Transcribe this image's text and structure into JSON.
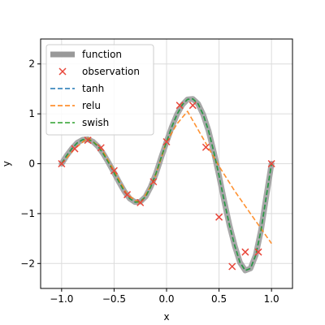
{
  "chart_data": {
    "type": "line",
    "title": "",
    "xlabel": "x",
    "ylabel": "y",
    "xlim": [
      -1.2,
      1.2
    ],
    "ylim": [
      -2.5,
      2.5
    ],
    "xticks": [
      -1.0,
      -0.5,
      0.0,
      0.5,
      1.0
    ],
    "xtick_labels": [
      "−1.0",
      "−0.5",
      "0.0",
      "0.5",
      "1.0"
    ],
    "yticks": [
      -2,
      -1,
      0,
      1,
      2
    ],
    "ytick_labels": [
      "−2",
      "−1",
      "0",
      "1",
      "2"
    ],
    "grid": true,
    "legend_position": "upper-left",
    "series": [
      {
        "name": "function",
        "style": "thick-solid",
        "color": "#999999",
        "x": [
          -1.0,
          -0.95,
          -0.9,
          -0.85,
          -0.8,
          -0.75,
          -0.7,
          -0.65,
          -0.6,
          -0.55,
          -0.5,
          -0.45,
          -0.4,
          -0.35,
          -0.3,
          -0.25,
          -0.2,
          -0.15,
          -0.1,
          -0.05,
          0.0,
          0.05,
          0.1,
          0.15,
          0.2,
          0.25,
          0.3,
          0.35,
          0.4,
          0.45,
          0.5,
          0.55,
          0.6,
          0.65,
          0.7,
          0.75,
          0.8,
          0.85,
          0.9,
          0.95,
          1.0
        ],
        "y": [
          0.0,
          0.17,
          0.31,
          0.42,
          0.48,
          0.49,
          0.44,
          0.34,
          0.19,
          0.01,
          -0.18,
          -0.38,
          -0.56,
          -0.7,
          -0.77,
          -0.76,
          -0.66,
          -0.46,
          -0.19,
          0.13,
          0.44,
          0.74,
          0.99,
          1.18,
          1.29,
          1.3,
          1.2,
          0.98,
          0.66,
          0.24,
          -0.24,
          -0.75,
          -1.24,
          -1.65,
          -1.98,
          -2.14,
          -2.1,
          -1.83,
          -1.33,
          -0.66,
          0.0
        ]
      },
      {
        "name": "tanh",
        "style": "dashed",
        "color": "#1f77b4",
        "x": [
          -1.0,
          -0.95,
          -0.9,
          -0.85,
          -0.8,
          -0.75,
          -0.7,
          -0.65,
          -0.6,
          -0.55,
          -0.5,
          -0.45,
          -0.4,
          -0.35,
          -0.3,
          -0.25,
          -0.2,
          -0.15,
          -0.1,
          -0.05,
          0.0,
          0.05,
          0.1,
          0.15,
          0.2,
          0.25,
          0.3,
          0.35,
          0.4,
          0.45,
          0.5,
          0.55,
          0.6,
          0.65,
          0.7,
          0.75,
          0.8,
          0.85,
          0.9,
          0.95,
          1.0
        ],
        "y": [
          0.0,
          0.17,
          0.31,
          0.42,
          0.48,
          0.49,
          0.44,
          0.34,
          0.19,
          0.01,
          -0.18,
          -0.38,
          -0.56,
          -0.7,
          -0.77,
          -0.76,
          -0.66,
          -0.46,
          -0.19,
          0.13,
          0.44,
          0.74,
          0.99,
          1.18,
          1.29,
          1.3,
          1.2,
          0.98,
          0.66,
          0.24,
          -0.24,
          -0.75,
          -1.24,
          -1.65,
          -1.98,
          -2.14,
          -2.1,
          -1.83,
          -1.33,
          -0.66,
          0.0
        ]
      },
      {
        "name": "relu",
        "style": "dashed",
        "color": "#ff7f0e",
        "x": [
          -1.0,
          -0.875,
          -0.75,
          -0.625,
          -0.5,
          -0.375,
          -0.25,
          -0.125,
          0.0,
          0.1,
          0.2,
          0.35,
          0.5,
          0.65,
          0.8,
          1.0
        ],
        "y": [
          0.0,
          0.3,
          0.52,
          0.32,
          -0.14,
          -0.62,
          -0.8,
          -0.36,
          0.44,
          0.8,
          1.05,
          0.5,
          -0.05,
          -0.55,
          -1.0,
          -1.6
        ]
      },
      {
        "name": "swish",
        "style": "dashed",
        "color": "#2ca02c",
        "x": [
          -1.0,
          -0.95,
          -0.9,
          -0.85,
          -0.8,
          -0.75,
          -0.7,
          -0.65,
          -0.6,
          -0.55,
          -0.5,
          -0.45,
          -0.4,
          -0.35,
          -0.3,
          -0.25,
          -0.2,
          -0.15,
          -0.1,
          -0.05,
          0.0,
          0.05,
          0.1,
          0.15,
          0.2,
          0.25,
          0.3,
          0.35,
          0.4,
          0.45,
          0.5,
          0.55,
          0.6,
          0.65,
          0.7,
          0.75,
          0.8,
          0.85,
          0.9,
          0.95,
          1.0
        ],
        "y": [
          0.0,
          0.17,
          0.31,
          0.42,
          0.48,
          0.49,
          0.44,
          0.34,
          0.19,
          0.01,
          -0.18,
          -0.38,
          -0.56,
          -0.7,
          -0.77,
          -0.76,
          -0.66,
          -0.46,
          -0.19,
          0.13,
          0.44,
          0.74,
          0.99,
          1.18,
          1.29,
          1.3,
          1.2,
          0.98,
          0.66,
          0.24,
          -0.24,
          -0.75,
          -1.24,
          -1.65,
          -1.98,
          -2.14,
          -2.1,
          -1.83,
          -1.33,
          -0.66,
          0.0
        ]
      }
    ],
    "observations": {
      "name": "observation",
      "marker": "x",
      "color": "#e8463a",
      "x": [
        -1.0,
        -0.875,
        -0.75,
        -0.625,
        -0.5,
        -0.375,
        -0.25,
        -0.125,
        0.0,
        0.125,
        0.25,
        0.375,
        0.5,
        0.625,
        0.75,
        0.875,
        1.0
      ],
      "y": [
        0.0,
        0.3,
        0.47,
        0.32,
        -0.14,
        -0.62,
        -0.78,
        -0.36,
        0.44,
        1.17,
        1.17,
        0.33,
        -1.07,
        -2.06,
        -1.77,
        -1.77,
        0.0
      ]
    },
    "legend": [
      {
        "label": "function",
        "kind": "thick-line",
        "color": "#999999"
      },
      {
        "label": "observation",
        "kind": "x-marker",
        "color": "#e8463a"
      },
      {
        "label": "tanh",
        "kind": "dashed-line",
        "color": "#1f77b4"
      },
      {
        "label": "relu",
        "kind": "dashed-line",
        "color": "#ff7f0e"
      },
      {
        "label": "swish",
        "kind": "dashed-line",
        "color": "#2ca02c"
      }
    ]
  }
}
